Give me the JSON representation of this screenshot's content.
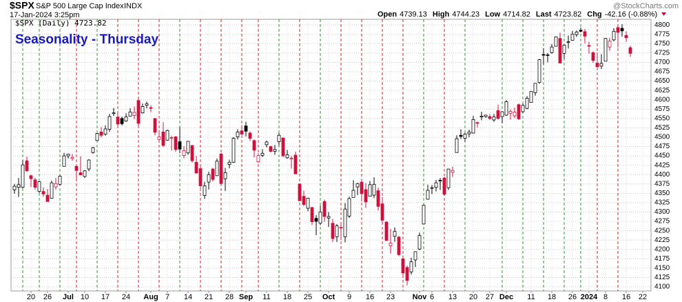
{
  "header": {
    "symbol": "$SPX",
    "name": "S&P 500 Large Cap Index",
    "exchange": "INDX",
    "timestamp": "17-Jan-2024 3:25pm",
    "quote": [
      {
        "label": "Open",
        "value": "4739.13"
      },
      {
        "label": "High",
        "value": "4744.23"
      },
      {
        "label": "Low",
        "value": "4714.82"
      },
      {
        "label": "Last",
        "value": "4723.82"
      },
      {
        "label": "Chg",
        "value": "-42.16 (-0.88%)"
      }
    ],
    "brand": "@StockCharts.com"
  },
  "chart_data": {
    "type": "candlestick",
    "title": "Seasonality - Thursday",
    "legend": "$SPX (Daily) 4723.82",
    "up_color": "#000000",
    "down_color": "#d0103a",
    "ylim": [
      4089,
      4815
    ],
    "yticks": [
      4100,
      4125,
      4150,
      4175,
      4200,
      4225,
      4250,
      4275,
      4300,
      4325,
      4350,
      4375,
      4400,
      4425,
      4450,
      4475,
      4500,
      4525,
      4550,
      4575,
      4600,
      4625,
      4650,
      4675,
      4700,
      4725,
      4750,
      4775,
      4800
    ],
    "grid": true,
    "categories": [
      null,
      null,
      null,
      null,
      "20",
      null,
      null,
      null,
      "26",
      null,
      null,
      null,
      null,
      "Jul",
      null,
      null,
      null,
      "10",
      null,
      null,
      null,
      null,
      "17",
      null,
      null,
      null,
      null,
      "24",
      null,
      null,
      null,
      null,
      null,
      "Aug",
      null,
      null,
      null,
      "7",
      null,
      null,
      null,
      null,
      "14",
      null,
      null,
      null,
      null,
      "21",
      null,
      null,
      null,
      null,
      "28",
      null,
      null,
      null,
      "Sep",
      null,
      null,
      null,
      null,
      "11",
      null,
      null,
      null,
      null,
      "18",
      null,
      null,
      null,
      null,
      "25",
      null,
      null,
      null,
      null,
      "Oct",
      null,
      null,
      null,
      null,
      "9",
      null,
      null,
      null,
      null,
      "16",
      null,
      null,
      null,
      null,
      "23",
      null,
      null,
      null,
      null,
      null,
      null,
      "Nov",
      null,
      null,
      "6",
      null,
      null,
      null,
      null,
      "13",
      null,
      null,
      null,
      null,
      "20",
      null,
      null,
      null,
      "27",
      null,
      null,
      null,
      "Dec",
      null,
      null,
      null,
      null,
      null,
      "11",
      null,
      null,
      null,
      null,
      "18",
      null,
      null,
      null,
      null,
      "26",
      null,
      null,
      null,
      "2024",
      null,
      null,
      null,
      "8",
      null,
      null,
      null,
      null,
      "16",
      null,
      null,
      null,
      "22",
      null,
      null
    ],
    "candles": [
      [
        4359,
        4375,
        4349,
        4369
      ],
      [
        4366,
        4391,
        4340,
        4373
      ],
      [
        4366,
        4439,
        4363,
        4426
      ],
      [
        4437,
        4448,
        4407,
        4410
      ],
      [
        4397,
        4400,
        4367,
        4389
      ],
      [
        4386,
        4391,
        4360,
        4366
      ],
      [
        4355,
        4382,
        4351,
        4381
      ],
      [
        4355,
        4366,
        4341,
        4348
      ],
      [
        4345,
        4362,
        4328,
        4328
      ],
      [
        4337,
        4384,
        4336,
        4378
      ],
      [
        4367,
        4391,
        4360,
        4376
      ],
      [
        4374,
        4398,
        4371,
        4396
      ],
      [
        4422,
        4458,
        4422,
        4450
      ],
      [
        4450,
        4456,
        4443,
        4455
      ],
      [
        4443,
        4455,
        4437,
        4446
      ],
      [
        4422,
        4423,
        4385,
        4411
      ],
      [
        4405,
        4449,
        4398,
        4399
      ],
      [
        4395,
        4412,
        4391,
        4410
      ],
      [
        4415,
        4441,
        4409,
        4439
      ],
      [
        4459,
        4474,
        4456,
        4472
      ],
      [
        4491,
        4511,
        4491,
        4510
      ],
      [
        4514,
        4527,
        4499,
        4505
      ],
      [
        4508,
        4532,
        4504,
        4522
      ],
      [
        4521,
        4562,
        4514,
        4555
      ],
      [
        4563,
        4578,
        4557,
        4565
      ],
      [
        4554,
        4564,
        4527,
        4535
      ],
      [
        4550,
        4555,
        4531,
        4536
      ],
      [
        4543,
        4564,
        4541,
        4554
      ],
      [
        4556,
        4577,
        4555,
        4567
      ],
      [
        4558,
        4582,
        4548,
        4566
      ],
      [
        4598,
        4607,
        4528,
        4537
      ],
      [
        4565,
        4590,
        4563,
        4582
      ],
      [
        4585,
        4595,
        4577,
        4589
      ],
      [
        4579,
        4585,
        4567,
        4577
      ],
      [
        4550,
        4551,
        4505,
        4513
      ],
      [
        4494,
        4519,
        4485,
        4501
      ],
      [
        4514,
        4540,
        4474,
        4478
      ],
      [
        4492,
        4520,
        4491,
        4518
      ],
      [
        4498,
        4504,
        4464,
        4499
      ],
      [
        4501,
        4503,
        4461,
        4467
      ],
      [
        4488,
        4527,
        4457,
        4468
      ],
      [
        4451,
        4476,
        4444,
        4464
      ],
      [
        4458,
        4490,
        4453,
        4489
      ],
      [
        4478,
        4478,
        4432,
        4437
      ],
      [
        4433,
        4450,
        4403,
        4404
      ],
      [
        4416,
        4421,
        4364,
        4370
      ],
      [
        4344,
        4381,
        4335,
        4370
      ],
      [
        4380,
        4408,
        4360,
        4400
      ],
      [
        4415,
        4418,
        4382,
        4387
      ],
      [
        4397,
        4443,
        4396,
        4436
      ],
      [
        4455,
        4458,
        4376,
        4376
      ],
      [
        4389,
        4418,
        4356,
        4405
      ],
      [
        4427,
        4440,
        4417,
        4433
      ],
      [
        4433,
        4500,
        4431,
        4497
      ],
      [
        4501,
        4521,
        4494,
        4514
      ],
      [
        4517,
        4532,
        4507,
        4508
      ],
      [
        4530,
        4541,
        4502,
        4516
      ],
      [
        4511,
        4515,
        4490,
        4497
      ],
      [
        4491,
        4494,
        4446,
        4465
      ],
      [
        4434,
        4457,
        4431,
        4451
      ],
      [
        4451,
        4468,
        4447,
        4457
      ],
      [
        4480,
        4491,
        4473,
        4487
      ],
      [
        4475,
        4477,
        4459,
        4462
      ],
      [
        4462,
        4479,
        4453,
        4467
      ],
      [
        4488,
        4511,
        4478,
        4505
      ],
      [
        4498,
        4498,
        4447,
        4450
      ],
      [
        4445,
        4466,
        4442,
        4453
      ],
      [
        4444,
        4450,
        4416,
        4444
      ],
      [
        4452,
        4461,
        4401,
        4402
      ],
      [
        4375,
        4375,
        4329,
        4330
      ],
      [
        4342,
        4357,
        4316,
        4320
      ],
      [
        4310,
        4338,
        4302,
        4337
      ],
      [
        4312,
        4314,
        4265,
        4274
      ],
      [
        4283,
        4292,
        4238,
        4275
      ],
      [
        4270,
        4317,
        4265,
        4300
      ],
      [
        4328,
        4333,
        4274,
        4288
      ],
      [
        4284,
        4300,
        4260,
        4288
      ],
      [
        4270,
        4282,
        4220,
        4229
      ],
      [
        4234,
        4268,
        4220,
        4263
      ],
      [
        4259,
        4268,
        4225,
        4258
      ],
      [
        4234,
        4324,
        4219,
        4308
      ],
      [
        4289,
        4341,
        4284,
        4336
      ],
      [
        4339,
        4385,
        4339,
        4358
      ],
      [
        4367,
        4378,
        4345,
        4376
      ],
      [
        4380,
        4386,
        4328,
        4349
      ],
      [
        4360,
        4377,
        4311,
        4327
      ],
      [
        4342,
        4383,
        4342,
        4373
      ],
      [
        4345,
        4393,
        4337,
        4374
      ],
      [
        4357,
        4365,
        4304,
        4315
      ],
      [
        4322,
        4340,
        4268,
        4278
      ],
      [
        4273,
        4276,
        4223,
        4224
      ],
      [
        4210,
        4255,
        4189,
        4217
      ],
      [
        4235,
        4259,
        4220,
        4248
      ],
      [
        4233,
        4236,
        4182,
        4186
      ],
      [
        4175,
        4184,
        4127,
        4137
      ],
      [
        4152,
        4157,
        4104,
        4117
      ],
      [
        4140,
        4178,
        4133,
        4167
      ],
      [
        4172,
        4194,
        4153,
        4194
      ],
      [
        4201,
        4245,
        4198,
        4237
      ],
      [
        4268,
        4319,
        4268,
        4318
      ],
      [
        4334,
        4373,
        4334,
        4358
      ],
      [
        4364,
        4372,
        4348,
        4365
      ],
      [
        4366,
        4386,
        4355,
        4378
      ],
      [
        4385,
        4391,
        4359,
        4383
      ],
      [
        4391,
        4393,
        4344,
        4347
      ],
      [
        4365,
        4415,
        4359,
        4415
      ],
      [
        4406,
        4421,
        4394,
        4411
      ],
      [
        4459,
        4505,
        4459,
        4496
      ],
      [
        4505,
        4521,
        4495,
        4502
      ],
      [
        4497,
        4511,
        4488,
        4508
      ],
      [
        4509,
        4520,
        4500,
        4514
      ],
      [
        4511,
        4557,
        4510,
        4547
      ],
      [
        4539,
        4542,
        4526,
        4538
      ],
      [
        4554,
        4568,
        4545,
        4556
      ],
      [
        4555,
        4560,
        4552,
        4559
      ],
      [
        4555,
        4562,
        4546,
        4550
      ],
      [
        4546,
        4562,
        4541,
        4554
      ],
      [
        4571,
        4587,
        4547,
        4550
      ],
      [
        4555,
        4569,
        4537,
        4568
      ],
      [
        4559,
        4599,
        4557,
        4595
      ],
      [
        4564,
        4574,
        4547,
        4569
      ],
      [
        4557,
        4579,
        4551,
        4567
      ],
      [
        4587,
        4590,
        4546,
        4549
      ],
      [
        4568,
        4590,
        4565,
        4585
      ],
      [
        4577,
        4610,
        4575,
        4604
      ],
      [
        4593,
        4623,
        4593,
        4622
      ],
      [
        4619,
        4644,
        4611,
        4644
      ],
      [
        4646,
        4709,
        4643,
        4707
      ],
      [
        4721,
        4738,
        4694,
        4719
      ],
      [
        4720,
        4725,
        4700,
        4719
      ],
      [
        4726,
        4749,
        4723,
        4741
      ],
      [
        4743,
        4769,
        4743,
        4768
      ],
      [
        4764,
        4779,
        4698,
        4698
      ],
      [
        4724,
        4748,
        4709,
        4746
      ],
      [
        4754,
        4772,
        4737,
        4755
      ],
      [
        4759,
        4784,
        4758,
        4775
      ],
      [
        4774,
        4785,
        4768,
        4781
      ],
      [
        4786,
        4793,
        4780,
        4783
      ],
      [
        4782,
        4789,
        4751,
        4770
      ],
      [
        4745,
        4755,
        4723,
        4743
      ],
      [
        4726,
        4729,
        4699,
        4705
      ],
      [
        4698,
        4726,
        4687,
        4688
      ],
      [
        4690,
        4722,
        4682,
        4697
      ],
      [
        4703,
        4765,
        4703,
        4764
      ],
      [
        4741,
        4766,
        4731,
        4757
      ],
      [
        4760,
        4791,
        4756,
        4783
      ],
      [
        4793,
        4798,
        4740,
        4780
      ],
      [
        4791,
        4802,
        4769,
        4784
      ],
      [
        4772,
        4783,
        4755,
        4766
      ],
      [
        4739.13,
        4744.23,
        4714.82,
        4723.82
      ],
      null,
      null,
      null,
      null,
      null
    ]
  }
}
